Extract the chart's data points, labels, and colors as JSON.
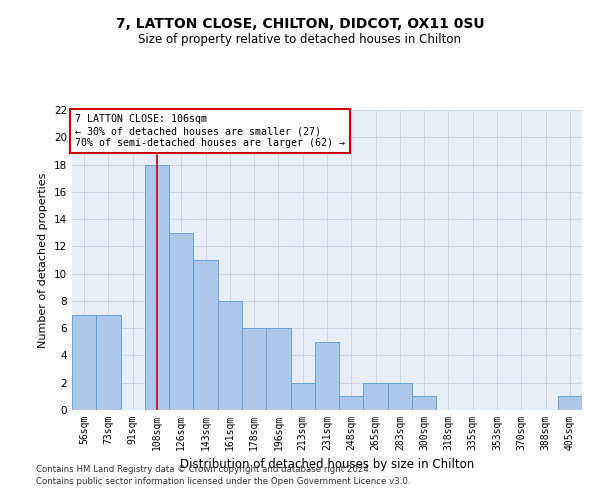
{
  "title": "7, LATTON CLOSE, CHILTON, DIDCOT, OX11 0SU",
  "subtitle": "Size of property relative to detached houses in Chilton",
  "xlabel": "Distribution of detached houses by size in Chilton",
  "ylabel": "Number of detached properties",
  "categories": [
    "56sqm",
    "73sqm",
    "91sqm",
    "108sqm",
    "126sqm",
    "143sqm",
    "161sqm",
    "178sqm",
    "196sqm",
    "213sqm",
    "231sqm",
    "248sqm",
    "265sqm",
    "283sqm",
    "300sqm",
    "318sqm",
    "335sqm",
    "353sqm",
    "370sqm",
    "388sqm",
    "405sqm"
  ],
  "values": [
    7,
    7,
    0,
    18,
    13,
    11,
    8,
    6,
    6,
    2,
    5,
    1,
    2,
    2,
    1,
    0,
    0,
    0,
    0,
    0,
    1
  ],
  "bar_color": "#aec6e8",
  "bar_edge_color": "#5b9bd5",
  "grid_color": "#ccd6e8",
  "background_color": "#e8eef8",
  "vline_x": 3,
  "vline_color": "#cc0000",
  "annotation_text": "7 LATTON CLOSE: 106sqm\n← 30% of detached houses are smaller (27)\n70% of semi-detached houses are larger (62) →",
  "annotation_box_color": "#ffffff",
  "annotation_box_edge": "#cc0000",
  "ylim": [
    0,
    22
  ],
  "yticks": [
    0,
    2,
    4,
    6,
    8,
    10,
    12,
    14,
    16,
    18,
    20,
    22
  ],
  "footer_line1": "Contains HM Land Registry data © Crown copyright and database right 2024.",
  "footer_line2": "Contains public sector information licensed under the Open Government Licence v3.0."
}
